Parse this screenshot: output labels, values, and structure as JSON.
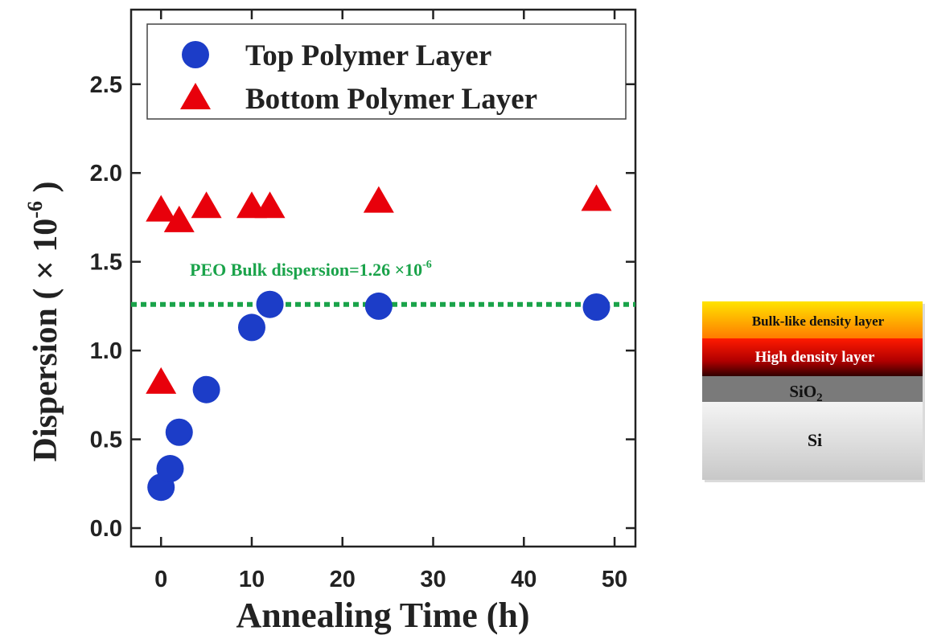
{
  "chart_data": {
    "type": "scatter",
    "ylabel": "Dispersion ( × 10",
    "ylabel_exponent": "-6",
    "ylabel_suffix": " )",
    "xlabel": "Annealing Time (h)",
    "xlim": [
      -3.3,
      52.3
    ],
    "ylim": [
      -0.104,
      2.92
    ],
    "xticks": [
      0,
      10,
      20,
      30,
      40,
      50
    ],
    "yticks": [
      {
        "value": 0,
        "label": "0.0"
      },
      0.5,
      {
        "value": 1,
        "label": "1.0"
      },
      1.5,
      {
        "value": 2,
        "label": "2.0"
      },
      2.5
    ],
    "legend": "upper center",
    "series": [
      {
        "name": "Top Polymer Layer",
        "marker": "circle",
        "color": "#1c3dc8",
        "x": [
          0,
          1,
          2,
          5,
          10,
          12,
          24,
          48
        ],
        "values": [
          0.23,
          0.335,
          0.54,
          0.78,
          1.13,
          1.26,
          1.25,
          1.245
        ]
      },
      {
        "name": "Bottom Polymer Layer",
        "marker": "triangle",
        "color": "#e8000b",
        "x": [
          0,
          0,
          2,
          5,
          10,
          12,
          24,
          48
        ],
        "values": [
          0.82,
          1.79,
          1.73,
          1.81,
          1.81,
          1.81,
          1.84,
          1.85
        ]
      }
    ],
    "reference_line": {
      "value": 1.26,
      "color": "#1aa34a",
      "label": "PEO Bulk dispersion=1.26 ×10",
      "label_exponent": "-6"
    }
  },
  "diagram": {
    "layers": [
      {
        "label": "Bulk-like density layer"
      },
      {
        "label": "High density layer"
      },
      {
        "label": "SiO",
        "subscript": "2"
      },
      {
        "label": "Si"
      }
    ]
  }
}
